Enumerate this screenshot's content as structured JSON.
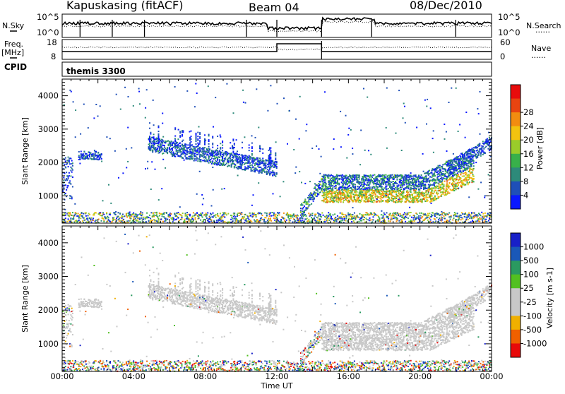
{
  "header": {
    "site": "Kapuskasing (fitACF)",
    "beam": "Beam 04",
    "date": "08/Dec/2010"
  },
  "side_labels": {
    "nsky": "N.Sky",
    "nsearch": "N.Search",
    "freq": "Freq.",
    "mhz": "[MHz]",
    "cpid": "CPID",
    "nave": "Nave",
    "dots": "......"
  },
  "cpid_text": "themis 3300",
  "noise_panel": {
    "left_ticks": [
      "10^5",
      "10^0"
    ],
    "right_ticks": [
      "10^5",
      "10^0"
    ]
  },
  "freq_panel": {
    "left_ticks": [
      "18",
      "8"
    ],
    "right_ticks": [
      "60",
      "0"
    ]
  },
  "chart_data": [
    {
      "type": "heatmap",
      "name": "power",
      "ylabel": "Slant Range [km]",
      "xlabel": "",
      "x_range_hours": [
        0,
        24
      ],
      "ylim": [
        180,
        4500
      ],
      "yticks": [
        "1000",
        "2000",
        "3000",
        "4000"
      ],
      "colorbar_label": "Power [dB]",
      "colorbar_ticks": [
        "4",
        "8",
        "12",
        "16",
        "20",
        "24",
        "28"
      ],
      "colors": [
        "#0a18ff",
        "#1f4fb8",
        "#2d8a7a",
        "#38b04a",
        "#9acc2a",
        "#f2c30f",
        "#f28c10",
        "#e84410",
        "#e80c0c"
      ]
    },
    {
      "type": "heatmap",
      "name": "velocity",
      "ylabel": "Slant Range [km]",
      "xlabel": "Time UT",
      "x_range_hours": [
        0,
        24
      ],
      "ylim": [
        180,
        4500
      ],
      "yticks": [
        "1000",
        "2000",
        "3000",
        "4000"
      ],
      "colorbar_label": "Velocity [m s-1]",
      "colorbar_ticks": [
        "1000",
        "500",
        "100",
        "25",
        "-25",
        "-100",
        "-500",
        "-1000"
      ],
      "colors": [
        "#1820c8",
        "#1a58b8",
        "#2a9a60",
        "#52c020",
        "#c8c8c8",
        "#c8c8c8",
        "#f0b000",
        "#f06000",
        "#e80a0a"
      ]
    }
  ],
  "time_ticks": [
    "00:00",
    "04:00",
    "08:00",
    "12:00",
    "16:00",
    "20:00",
    "00:00"
  ]
}
